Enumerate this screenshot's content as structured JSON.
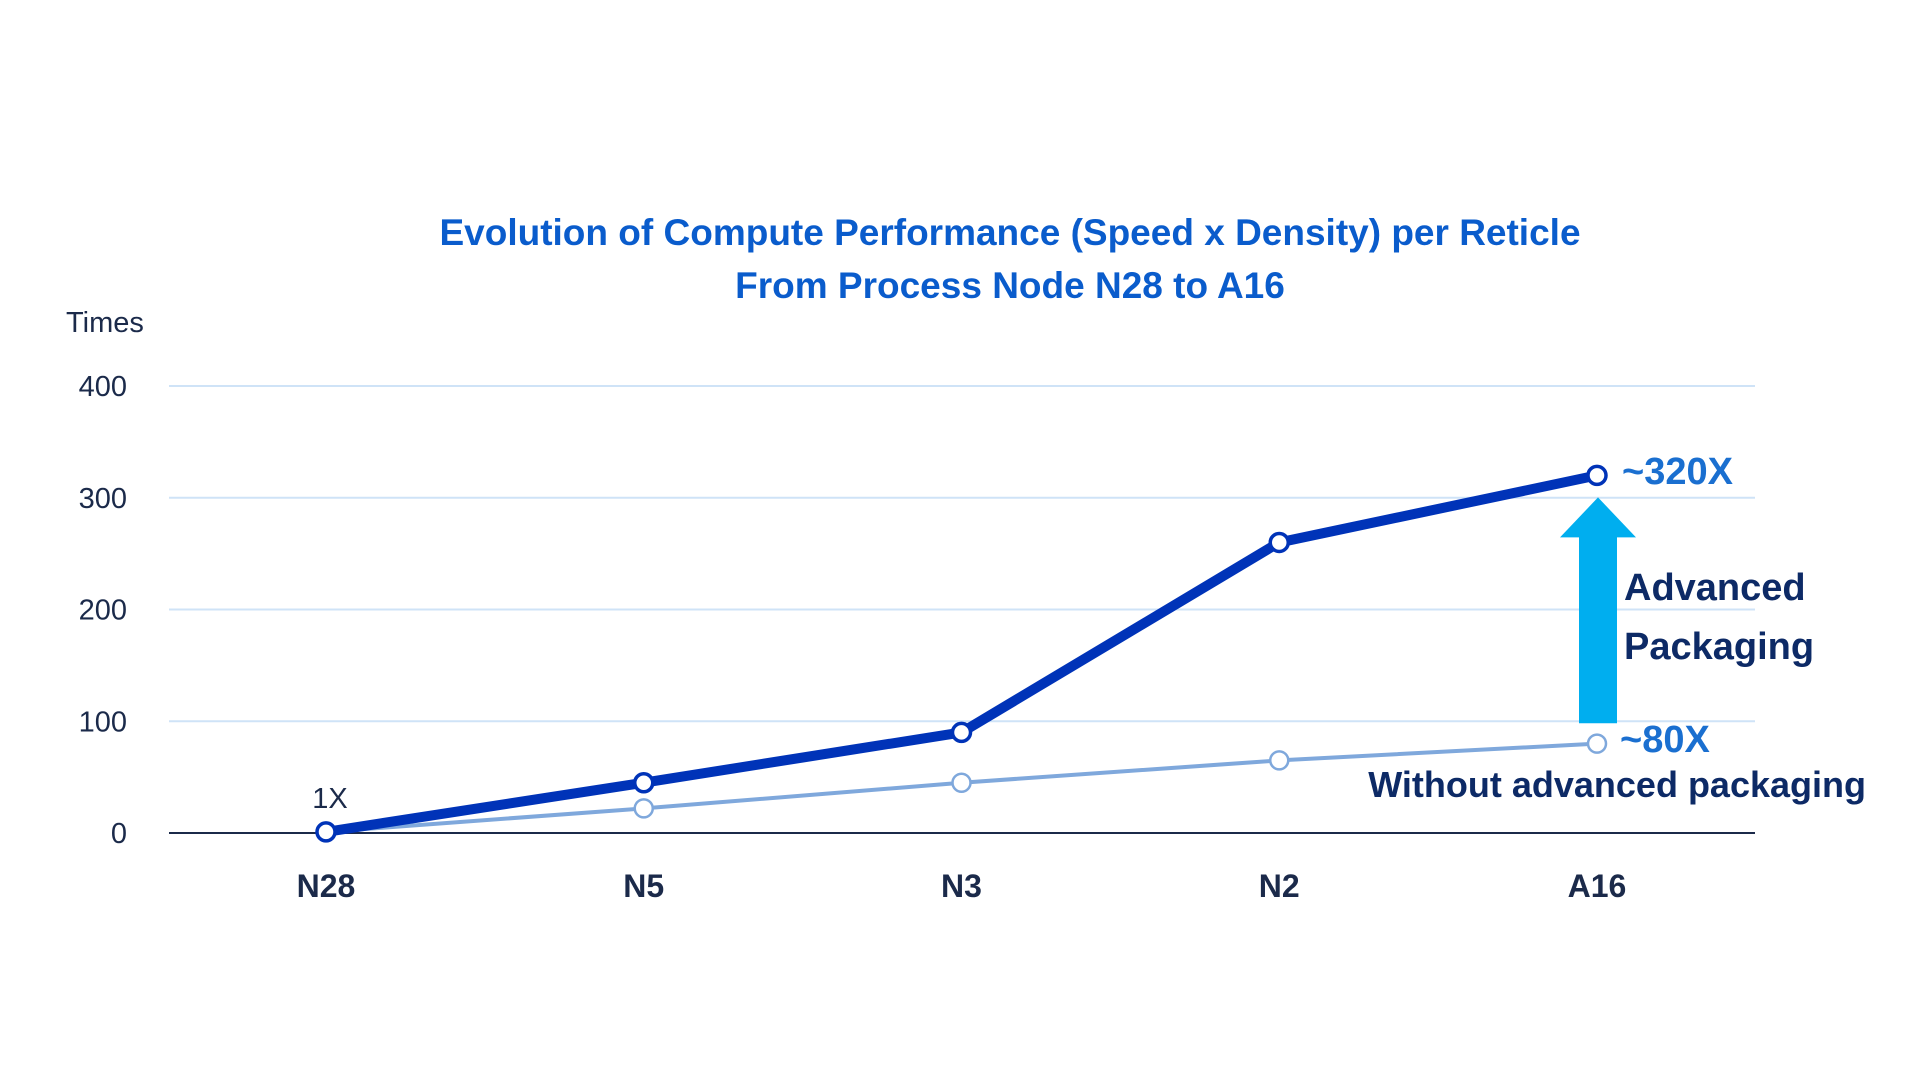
{
  "chart_data": {
    "type": "line",
    "title": "Evolution of Compute Performance (Speed x Density) per Reticle",
    "subtitle": "From Process Node N28 to A16",
    "xlabel": "",
    "ylabel": "Times",
    "ylim": [
      0,
      400
    ],
    "yticks": [
      "0",
      "100",
      "200",
      "300",
      "400"
    ],
    "categories": [
      "N28",
      "N5",
      "N3",
      "N2",
      "A16"
    ],
    "grid": true,
    "series": [
      {
        "key": "with",
        "values": [
          1,
          45,
          90,
          260,
          320
        ],
        "color": "#0033b8"
      },
      {
        "key": "without",
        "values": [
          1,
          22,
          45,
          65,
          80
        ],
        "color": "#7fa8dc"
      }
    ],
    "annotations": {
      "start": "1X",
      "top_value": "~320X",
      "bottom_value": "~80X",
      "arrow_label_line1": "Advanced",
      "arrow_label_line2": "Packaging",
      "without_label": "Without advanced packaging"
    },
    "colors": {
      "title": "#0a5ccc",
      "arrow": "#00aeef",
      "value_label": "#1a6fd0",
      "dark_text": "#0d2a66",
      "grid": "#cfe3f7"
    }
  }
}
